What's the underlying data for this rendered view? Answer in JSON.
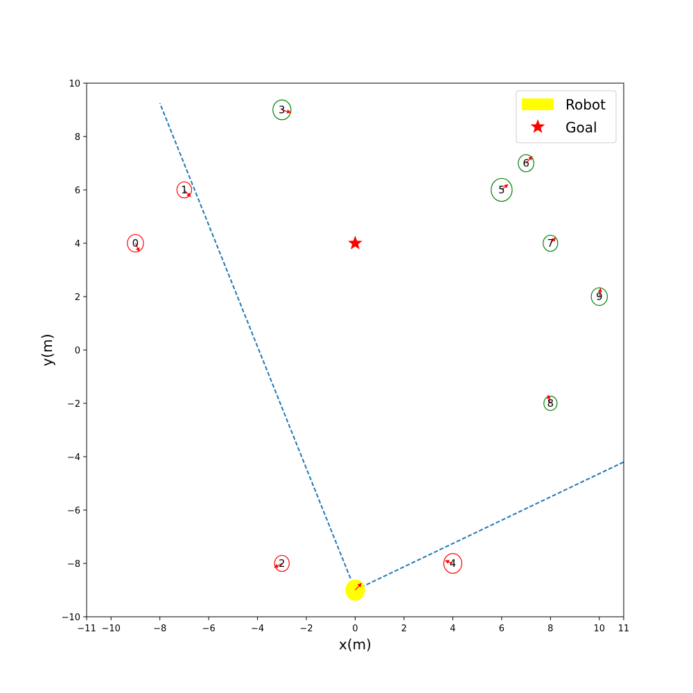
{
  "chart_data": {
    "type": "scatter",
    "xlabel": "x(m)",
    "ylabel": "y(m)",
    "xlim": [
      -11,
      11
    ],
    "ylim": [
      -10,
      10
    ],
    "x_ticks": [
      -11,
      -10,
      -8,
      -6,
      -4,
      -2,
      0,
      2,
      4,
      6,
      8,
      10,
      11
    ],
    "x_tick_labels": [
      "−11",
      "−10",
      "−8",
      "−6",
      "−4",
      "−2",
      "0",
      "2",
      "4",
      "6",
      "8",
      "10",
      "11"
    ],
    "y_ticks": [
      -10,
      -8,
      -6,
      -4,
      -2,
      0,
      2,
      4,
      6,
      8,
      10
    ],
    "y_tick_labels": [
      "−10",
      "−8",
      "−6",
      "−4",
      "−2",
      "0",
      "2",
      "4",
      "6",
      "8",
      "10"
    ],
    "grid": false,
    "legend": {
      "placement": "top-right",
      "entries": [
        {
          "label": "Robot",
          "color": "#ffff00",
          "marker": "patch"
        },
        {
          "label": "Goal",
          "color": "#ff0000",
          "marker": "star"
        }
      ]
    },
    "robot": {
      "x": 0,
      "y": -9,
      "radius": 0.4,
      "color": "#ffff00",
      "heading": [
        0.25,
        0.25
      ]
    },
    "goal": {
      "x": 0,
      "y": 4,
      "color": "#ff0000"
    },
    "field_of_view": {
      "color": "#1f77b4",
      "lines": [
        {
          "from": [
            0,
            -9
          ],
          "to": [
            -8,
            9.25
          ]
        },
        {
          "from": [
            0,
            -9
          ],
          "to": [
            11,
            -4.2
          ]
        }
      ]
    },
    "agents": [
      {
        "id": "0",
        "x": -9,
        "y": 4,
        "radius": 0.33,
        "color": "#ff0000",
        "arrow": [
          0.15,
          -0.3
        ]
      },
      {
        "id": "1",
        "x": -7,
        "y": 6,
        "radius": 0.3,
        "color": "#ff0000",
        "arrow": [
          0.25,
          -0.25
        ]
      },
      {
        "id": "2",
        "x": -3,
        "y": -8,
        "radius": 0.3,
        "color": "#ff0000",
        "arrow": [
          -0.3,
          -0.15
        ]
      },
      {
        "id": "3",
        "x": -3,
        "y": 9,
        "radius": 0.37,
        "color": "#008000",
        "arrow": [
          0.35,
          -0.1
        ]
      },
      {
        "id": "4",
        "x": 4,
        "y": -8,
        "radius": 0.37,
        "color": "#ff0000",
        "arrow": [
          -0.3,
          0.1
        ]
      },
      {
        "id": "5",
        "x": 6,
        "y": 6,
        "radius": 0.43,
        "color": "#008000",
        "arrow": [
          0.25,
          0.2
        ]
      },
      {
        "id": "6",
        "x": 7,
        "y": 7,
        "radius": 0.32,
        "color": "#008000",
        "arrow": [
          0.25,
          0.25
        ]
      },
      {
        "id": "7",
        "x": 8,
        "y": 4,
        "radius": 0.3,
        "color": "#008000",
        "arrow": [
          0.2,
          0.2
        ]
      },
      {
        "id": "8",
        "x": 8,
        "y": -2,
        "radius": 0.27,
        "color": "#008000",
        "arrow": [
          -0.1,
          0.3
        ]
      },
      {
        "id": "9",
        "x": 10,
        "y": 2,
        "radius": 0.33,
        "color": "#008000",
        "arrow": [
          0.05,
          0.3
        ]
      }
    ],
    "arrow_color": "#ff0000"
  }
}
